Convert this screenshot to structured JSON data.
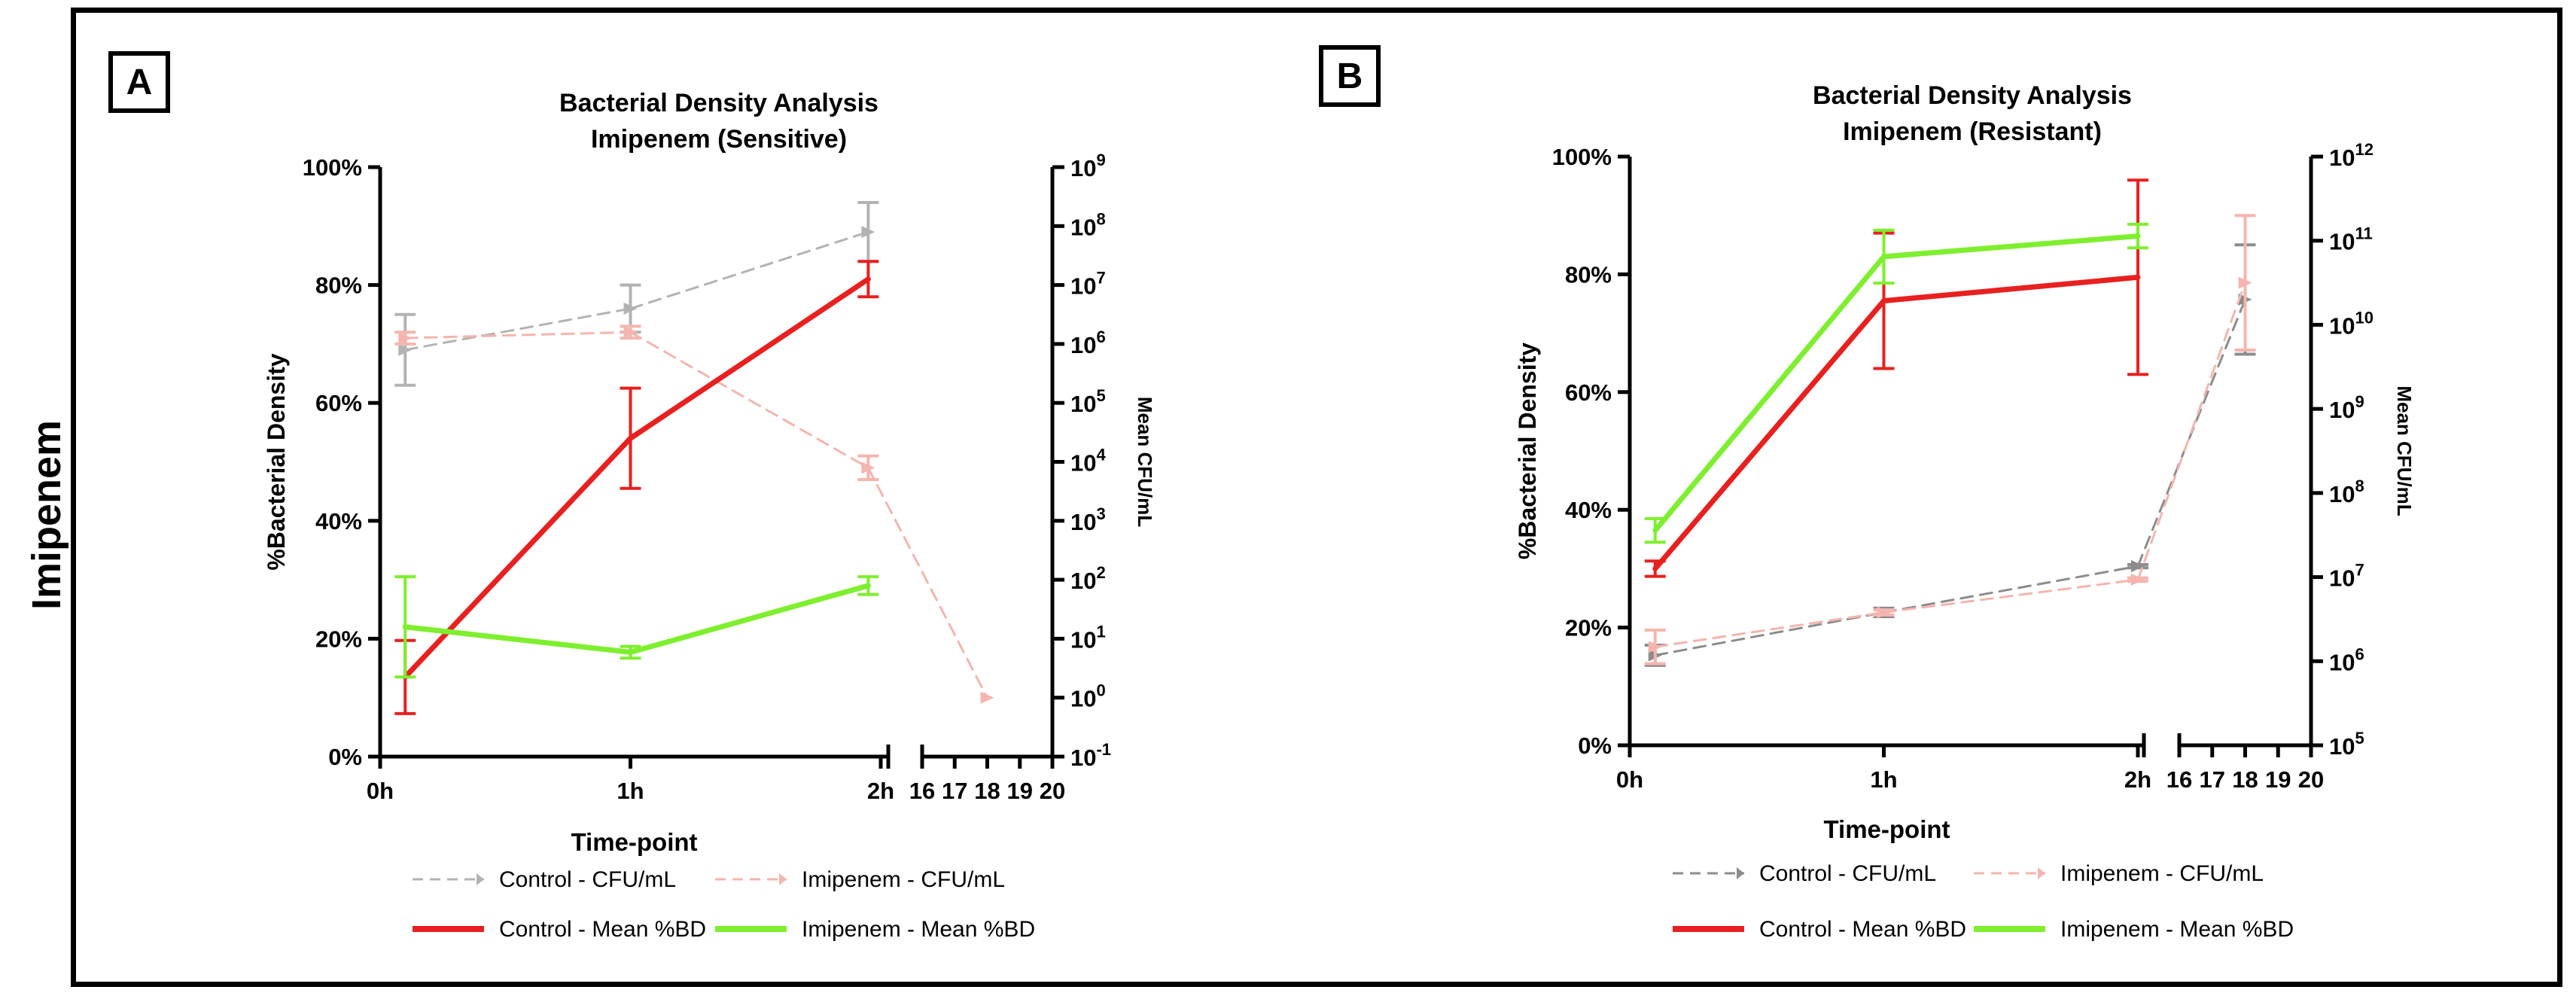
{
  "row_label": "Imipenem",
  "chart_data": [
    {
      "panel": "A",
      "type": "line",
      "title": "Bacterial Density Analysis",
      "subtitle": "Imipenem (Sensitive)",
      "xlabel": "Time-point",
      "ylabel": "%Bacterial Density",
      "y2label": "Mean CFU/mL",
      "x_ticks": [
        "0h",
        "1h",
        "2h"
      ],
      "x_break_ticks": [
        "16",
        "17",
        "18",
        "19",
        "20"
      ],
      "y_ticks": [
        "0%",
        "20%",
        "40%",
        "60%",
        "80%",
        "100%"
      ],
      "ylim": [
        0,
        100
      ],
      "y2_exponent_range": [
        -1,
        9
      ],
      "y2_tick_labels": [
        {
          "base": "10",
          "exp": "-1"
        },
        {
          "base": "10",
          "exp": "0"
        },
        {
          "base": "10",
          "exp": "1"
        },
        {
          "base": "10",
          "exp": "2"
        },
        {
          "base": "10",
          "exp": "3"
        },
        {
          "base": "10",
          "exp": "4"
        },
        {
          "base": "10",
          "exp": "5"
        },
        {
          "base": "10",
          "exp": "6"
        },
        {
          "base": "10",
          "exp": "7"
        },
        {
          "base": "10",
          "exp": "8"
        },
        {
          "base": "10",
          "exp": "9"
        }
      ],
      "series": [
        {
          "name": "Control - CFU/mL",
          "axis": "right",
          "style": "dashed",
          "color": "#b3b3b3",
          "x": [
            0.1,
            1.0,
            1.95
          ],
          "y": [
            5.9,
            6.6,
            7.9
          ],
          "err": [
            0.6,
            0.4,
            0.5
          ]
        },
        {
          "name": "Imipenem - CFU/mL",
          "axis": "right",
          "style": "dashed",
          "color": "#f5b5ae",
          "x": [
            0.1,
            1.0,
            1.95,
            18
          ],
          "y": [
            6.1,
            6.2,
            3.9,
            0.0
          ],
          "err": [
            0.1,
            0.1,
            0.2,
            0
          ]
        },
        {
          "name": "Control - Mean %BD",
          "axis": "left",
          "style": "solid",
          "color": "#e8201f",
          "x": [
            0.1,
            1.0,
            1.95
          ],
          "y": [
            13.5,
            54.0,
            81.0
          ],
          "err": [
            6.2,
            8.5,
            3.0
          ]
        },
        {
          "name": "Imipenem - Mean %BD",
          "axis": "left",
          "style": "solid",
          "color": "#7eef2e",
          "x": [
            0.1,
            1.0,
            1.95
          ],
          "y": [
            22.0,
            17.7,
            29.0
          ],
          "err": [
            8.5,
            1.0,
            1.5
          ]
        }
      ],
      "legend": [
        {
          "label": "Control - CFU/mL",
          "color": "#b3b3b3",
          "style": "dashed"
        },
        {
          "label": "Imipenem - CFU/mL",
          "color": "#f5b5ae",
          "style": "dashed"
        },
        {
          "label": "Control - Mean %BD",
          "color": "#e8201f",
          "style": "solid"
        },
        {
          "label": "Imipenem - Mean %BD",
          "color": "#7eef2e",
          "style": "solid"
        }
      ]
    },
    {
      "panel": "B",
      "type": "line",
      "title": "Bacterial Density Analysis",
      "subtitle": "Imipenem (Resistant)",
      "xlabel": "Time-point",
      "ylabel": "%Bacterial Density",
      "y2label": "Mean CFU/mL",
      "x_ticks": [
        "0h",
        "1h",
        "2h"
      ],
      "x_break_ticks": [
        "16",
        "17",
        "18",
        "19",
        "20"
      ],
      "y_ticks": [
        "0%",
        "20%",
        "40%",
        "60%",
        "80%",
        "100%"
      ],
      "ylim": [
        0,
        100
      ],
      "y2_exponent_range": [
        5,
        12
      ],
      "y2_tick_labels": [
        {
          "base": "10",
          "exp": "5"
        },
        {
          "base": "10",
          "exp": "6"
        },
        {
          "base": "10",
          "exp": "7"
        },
        {
          "base": "10",
          "exp": "8"
        },
        {
          "base": "10",
          "exp": "9"
        },
        {
          "base": "10",
          "exp": "10"
        },
        {
          "base": "10",
          "exp": "11"
        },
        {
          "base": "10",
          "exp": "12"
        }
      ],
      "series": [
        {
          "name": "Control - CFU/mL",
          "axis": "right",
          "style": "dashed",
          "color": "#8c8c8c",
          "x": [
            0.1,
            1.0,
            2.0,
            18
          ],
          "y": [
            6.07,
            6.58,
            7.13,
            10.3
          ],
          "err": [
            0.12,
            0.05,
            0.02,
            0.65
          ]
        },
        {
          "name": "Imipenem - CFU/mL",
          "axis": "right",
          "style": "dashed",
          "color": "#f5b5ae",
          "x": [
            0.1,
            1.0,
            2.0,
            18
          ],
          "y": [
            6.17,
            6.58,
            6.97,
            10.5
          ],
          "err": [
            0.2,
            0.03,
            0.02,
            0.8
          ]
        },
        {
          "name": "Control - Mean %BD",
          "axis": "left",
          "style": "solid",
          "color": "#e8201f",
          "x": [
            0.1,
            1.0,
            2.0
          ],
          "y": [
            30.0,
            75.5,
            79.5
          ],
          "err": [
            1.3,
            11.5,
            16.5
          ]
        },
        {
          "name": "Imipenem - Mean %BD",
          "axis": "left",
          "style": "solid",
          "color": "#7eef2e",
          "x": [
            0.1,
            1.0,
            2.0
          ],
          "y": [
            36.5,
            83.0,
            86.5
          ],
          "err": [
            2.0,
            4.5,
            2.0
          ]
        }
      ],
      "legend": [
        {
          "label": "Control - CFU/mL",
          "color": "#8c8c8c",
          "style": "dashed"
        },
        {
          "label": "Imipenem - CFU/mL",
          "color": "#f5b5ae",
          "style": "dashed"
        },
        {
          "label": "Control - Mean %BD",
          "color": "#e8201f",
          "style": "solid"
        },
        {
          "label": "Imipenem - Mean %BD",
          "color": "#7eef2e",
          "style": "solid"
        }
      ]
    }
  ]
}
